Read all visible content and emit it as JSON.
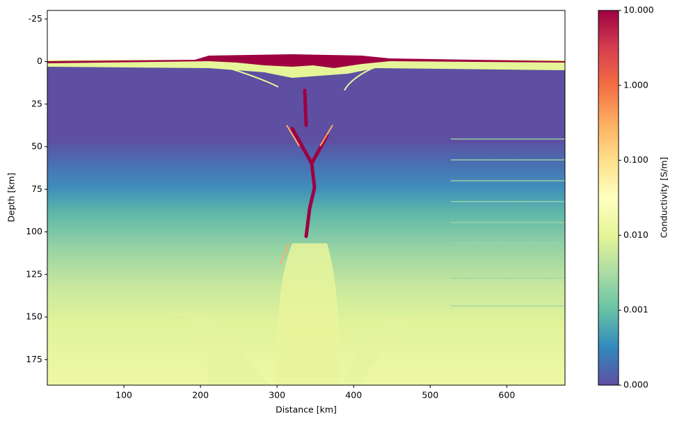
{
  "chart_data": {
    "type": "heatmap",
    "xlabel": "Distance [km]",
    "ylabel": "Depth [km]",
    "xlim": [
      0,
      676
    ],
    "xticks": [
      100,
      200,
      300,
      400,
      500,
      600
    ],
    "ylim": [
      190,
      -30
    ],
    "yticks": [
      -25,
      0,
      25,
      50,
      75,
      100,
      125,
      150,
      175
    ],
    "colorbar": {
      "label": "Conductivity [S/m]",
      "scale": "log",
      "colormap": "Spectral_r",
      "lim": [
        0.0001,
        10
      ],
      "ticks": [
        {
          "value": 10,
          "label": "10.000"
        },
        {
          "value": 1,
          "label": "1.000"
        },
        {
          "value": 0.1,
          "label": "0.100"
        },
        {
          "value": 0.01,
          "label": "0.010"
        },
        {
          "value": 0.001,
          "label": "0.001"
        },
        {
          "value": 0.0001,
          "label": "0.000"
        }
      ]
    }
  }
}
